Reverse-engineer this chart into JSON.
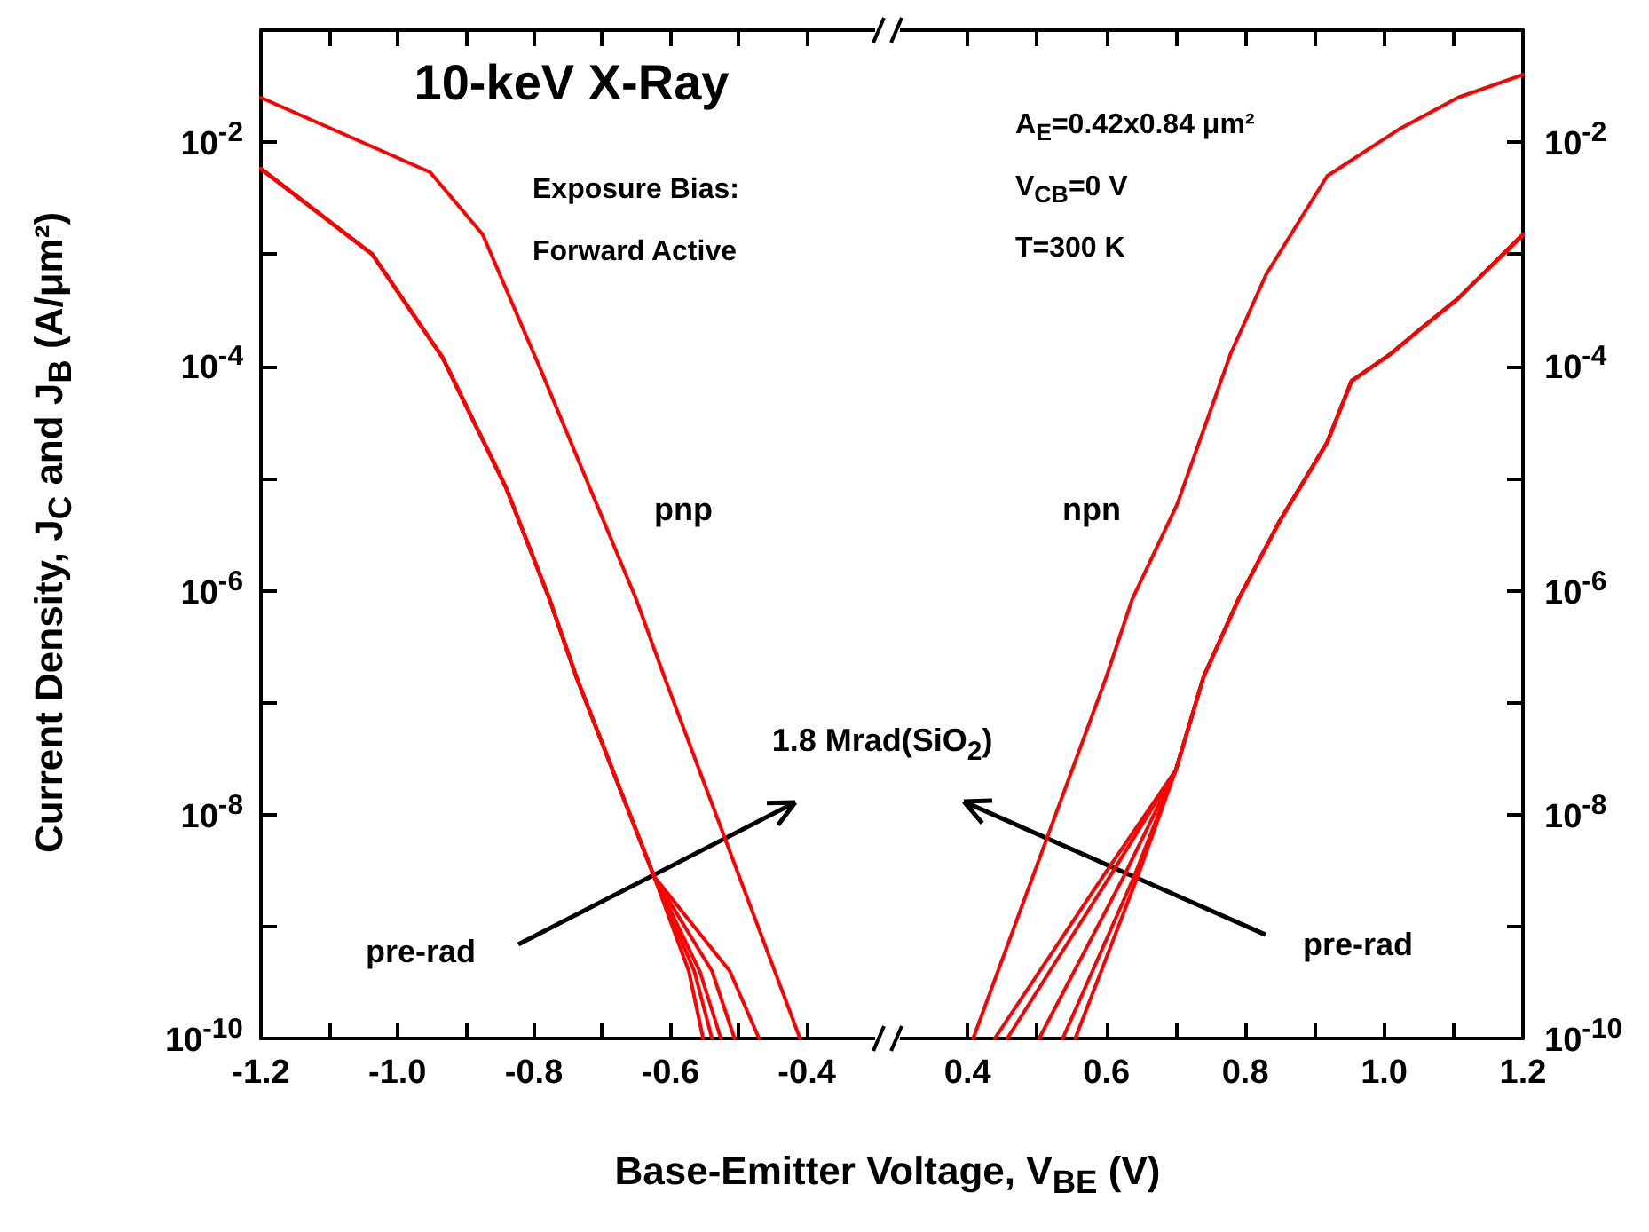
{
  "chart_data": [
    {
      "type": "line",
      "title": "10-keV X-Ray",
      "xlabel": "Base-Emitter Voltage, V$_{BE}$ (V)",
      "ylabel": "Current Density, J$_{C}$ and J$_{B}$ (A/μm²)",
      "log": "y",
      "xlim": [
        -1.2,
        -0.3
      ],
      "ylim": [
        1e-10,
        0.1
      ],
      "xticks": [
        -1.2,
        {
          "value": -1.1,
          "label": null
        },
        {
          "value": -1,
          "label": "-1.0"
        },
        {
          "value": -0.9,
          "label": null
        },
        -0.8,
        {
          "value": -0.7,
          "label": null
        },
        -0.6,
        {
          "value": -0.5,
          "label": null
        },
        -0.4
      ],
      "yticks": [
        {
          "value": 1e-10,
          "label": "10$^{-10}$"
        },
        {
          "value": 1e-09,
          "label": null
        },
        {
          "value": 1e-08,
          "label": "10$^{-8}$"
        },
        {
          "value": 1e-07,
          "label": null
        },
        {
          "value": 1e-06,
          "label": "10$^{-6}$"
        },
        {
          "value": 1e-05,
          "label": null
        },
        {
          "value": 0.0001,
          "label": "10$^{-4}$"
        },
        {
          "value": 0.001,
          "label": null
        },
        {
          "value": 0.01,
          "label": "10$^{-2}$"
        }
      ],
      "annotations": [
        "Exposure Bias:",
        "Forward Active",
        "pnp",
        "pre-rad",
        "1.8 Mrad(SiO$_{2}$)"
      ],
      "series": [
        {
          "color": "#ff0000",
          "x": [
            -1.2,
            -0.952,
            -0.875,
            -0.79,
            -0.65,
            -0.609,
            -0.41
          ],
          "values": [
            0.025,
            0.0054,
            0.0015,
            9.3e-05,
            8.3e-07,
            1.7e-07,
            1e-10
          ]
        },
        {
          "color": "#ff0000",
          "x": [
            -1.2,
            -1.037,
            -0.934,
            -0.841,
            -0.777,
            -0.738,
            -0.624,
            -0.573,
            -0.552
          ],
          "values": [
            0.0058,
            0.001,
            0.00012,
            8.3e-06,
            8.3e-07,
            1.7e-07,
            2.8e-09,
            4e-10,
            1e-10
          ]
        },
        {
          "color": "#ff0000",
          "x": [
            -1.2,
            -1.037,
            -0.934,
            -0.841,
            -0.777,
            -0.738,
            -0.624,
            -0.565,
            -0.539
          ],
          "values": [
            0.0058,
            0.001,
            0.00012,
            8.3e-06,
            8.3e-07,
            1.7e-07,
            2.8e-09,
            4e-10,
            1e-10
          ]
        },
        {
          "color": "#ff0000",
          "x": [
            -1.2,
            -1.037,
            -0.934,
            -0.841,
            -0.777,
            -0.738,
            -0.624,
            -0.557,
            -0.526
          ],
          "values": [
            0.0058,
            0.001,
            0.00012,
            8.3e-06,
            8.3e-07,
            1.7e-07,
            2.8e-09,
            4e-10,
            1e-10
          ]
        },
        {
          "color": "#ff0000",
          "x": [
            -1.2,
            -1.037,
            -0.934,
            -0.841,
            -0.777,
            -0.738,
            -0.624,
            -0.539,
            -0.506
          ],
          "values": [
            0.0058,
            0.001,
            0.00012,
            8.3e-06,
            8.3e-07,
            1.7e-07,
            2.8e-09,
            4e-10,
            1e-10
          ]
        },
        {
          "color": "#ff0000",
          "x": [
            -1.2,
            -1.037,
            -0.934,
            -0.841,
            -0.777,
            -0.738,
            -0.624,
            -0.513,
            -0.47
          ],
          "values": [
            0.0058,
            0.001,
            0.00012,
            8.3e-06,
            8.3e-07,
            1.7e-07,
            2.8e-09,
            4e-10,
            1e-10
          ]
        }
      ]
    },
    {
      "type": "line",
      "log": "y2",
      "xlim": [
        0.3,
        1.2
      ],
      "y2lim": [
        1e-10,
        0.1
      ],
      "xticks": [
        0.4,
        {
          "value": 0.5,
          "label": null
        },
        0.6,
        {
          "value": 0.7,
          "label": null
        },
        0.8,
        {
          "value": 0.9,
          "label": null
        },
        {
          "value": 1,
          "label": "1.0"
        },
        {
          "value": 1.1,
          "label": null
        },
        1.2
      ],
      "y2ticks": [
        {
          "value": 1e-10,
          "label": "10$^{-10}$"
        },
        {
          "value": 1e-09,
          "label": null
        },
        {
          "value": 1e-08,
          "label": "10$^{-8}$"
        },
        {
          "value": 1e-07,
          "label": null
        },
        {
          "value": 1e-06,
          "label": "10$^{-6}$"
        },
        {
          "value": 1e-05,
          "label": null
        },
        {
          "value": 0.0001,
          "label": "10$^{-4}$"
        },
        {
          "value": 0.001,
          "label": null
        },
        {
          "value": 0.01,
          "label": "10$^{-2}$"
        }
      ],
      "annotations": [
        "A$_{E}$=0.42x0.84 μm²",
        "V$_{CB}$=0 V",
        "T=300 K",
        "npn",
        "pre-rad"
      ],
      "series": [
        {
          "color": "#ff0000",
          "axis": "y2",
          "x": [
            0.408,
            0.6,
            0.637,
            0.702,
            0.779,
            0.83,
            0.918,
            1.021,
            1.106,
            1.2
          ],
          "values": [
            1e-10,
            1.7e-07,
            8.3e-07,
            5.9e-06,
            0.00013,
            0.00066,
            0.005,
            0.013,
            0.025,
            0.04
          ]
        },
        {
          "color": "#ff0000",
          "axis": "y2",
          "x": [
            0.555,
            0.645,
            0.7,
            0.74,
            0.79,
            0.849,
            0.918,
            0.953,
            1.01,
            1.054,
            1.106,
            1.2
          ],
          "values": [
            1e-10,
            2.8e-09,
            2.5e-08,
            1.7e-07,
            8.3e-07,
            4.1e-06,
            2.1e-05,
            7.4e-05,
            0.00013,
            0.00022,
            0.0004,
            0.0015
          ]
        },
        {
          "color": "#ff0000",
          "axis": "y2",
          "x": [
            0.537,
            0.64,
            0.7,
            0.74,
            0.79,
            0.849,
            0.918,
            0.953,
            1.01,
            1.054,
            1.106,
            1.2
          ],
          "values": [
            1e-10,
            2.8e-09,
            2.5e-08,
            1.7e-07,
            8.3e-07,
            4.1e-06,
            2.1e-05,
            7.4e-05,
            0.00013,
            0.00022,
            0.0004,
            0.0015
          ]
        },
        {
          "color": "#ff0000",
          "axis": "y2",
          "x": [
            0.503,
            0.625,
            0.7,
            0.74,
            0.79,
            0.849,
            0.918,
            0.953,
            1.01,
            1.054,
            1.106,
            1.2
          ],
          "values": [
            1e-10,
            2.8e-09,
            2.5e-08,
            1.7e-07,
            8.3e-07,
            4.1e-06,
            2.1e-05,
            7.4e-05,
            0.00013,
            0.00022,
            0.0004,
            0.0015
          ]
        },
        {
          "color": "#ff0000",
          "axis": "y2",
          "x": [
            0.457,
            0.605,
            0.7,
            0.74,
            0.79,
            0.849,
            0.918,
            0.953,
            1.01,
            1.054,
            1.106,
            1.2
          ],
          "values": [
            1e-10,
            2.8e-09,
            2.5e-08,
            1.7e-07,
            8.3e-07,
            4.1e-06,
            2.1e-05,
            7.4e-05,
            0.00013,
            0.00022,
            0.0004,
            0.0015
          ]
        },
        {
          "color": "#ff0000",
          "axis": "y2",
          "x": [
            0.439,
            0.595,
            0.7,
            0.74,
            0.79,
            0.849,
            0.918,
            0.953,
            1.01,
            1.054,
            1.106,
            1.2
          ],
          "values": [
            1e-10,
            2.8e-09,
            2.5e-08,
            1.7e-07,
            8.3e-07,
            4.1e-06,
            2.1e-05,
            7.4e-05,
            0.00013,
            0.00022,
            0.0004,
            0.0015
          ]
        }
      ]
    }
  ]
}
